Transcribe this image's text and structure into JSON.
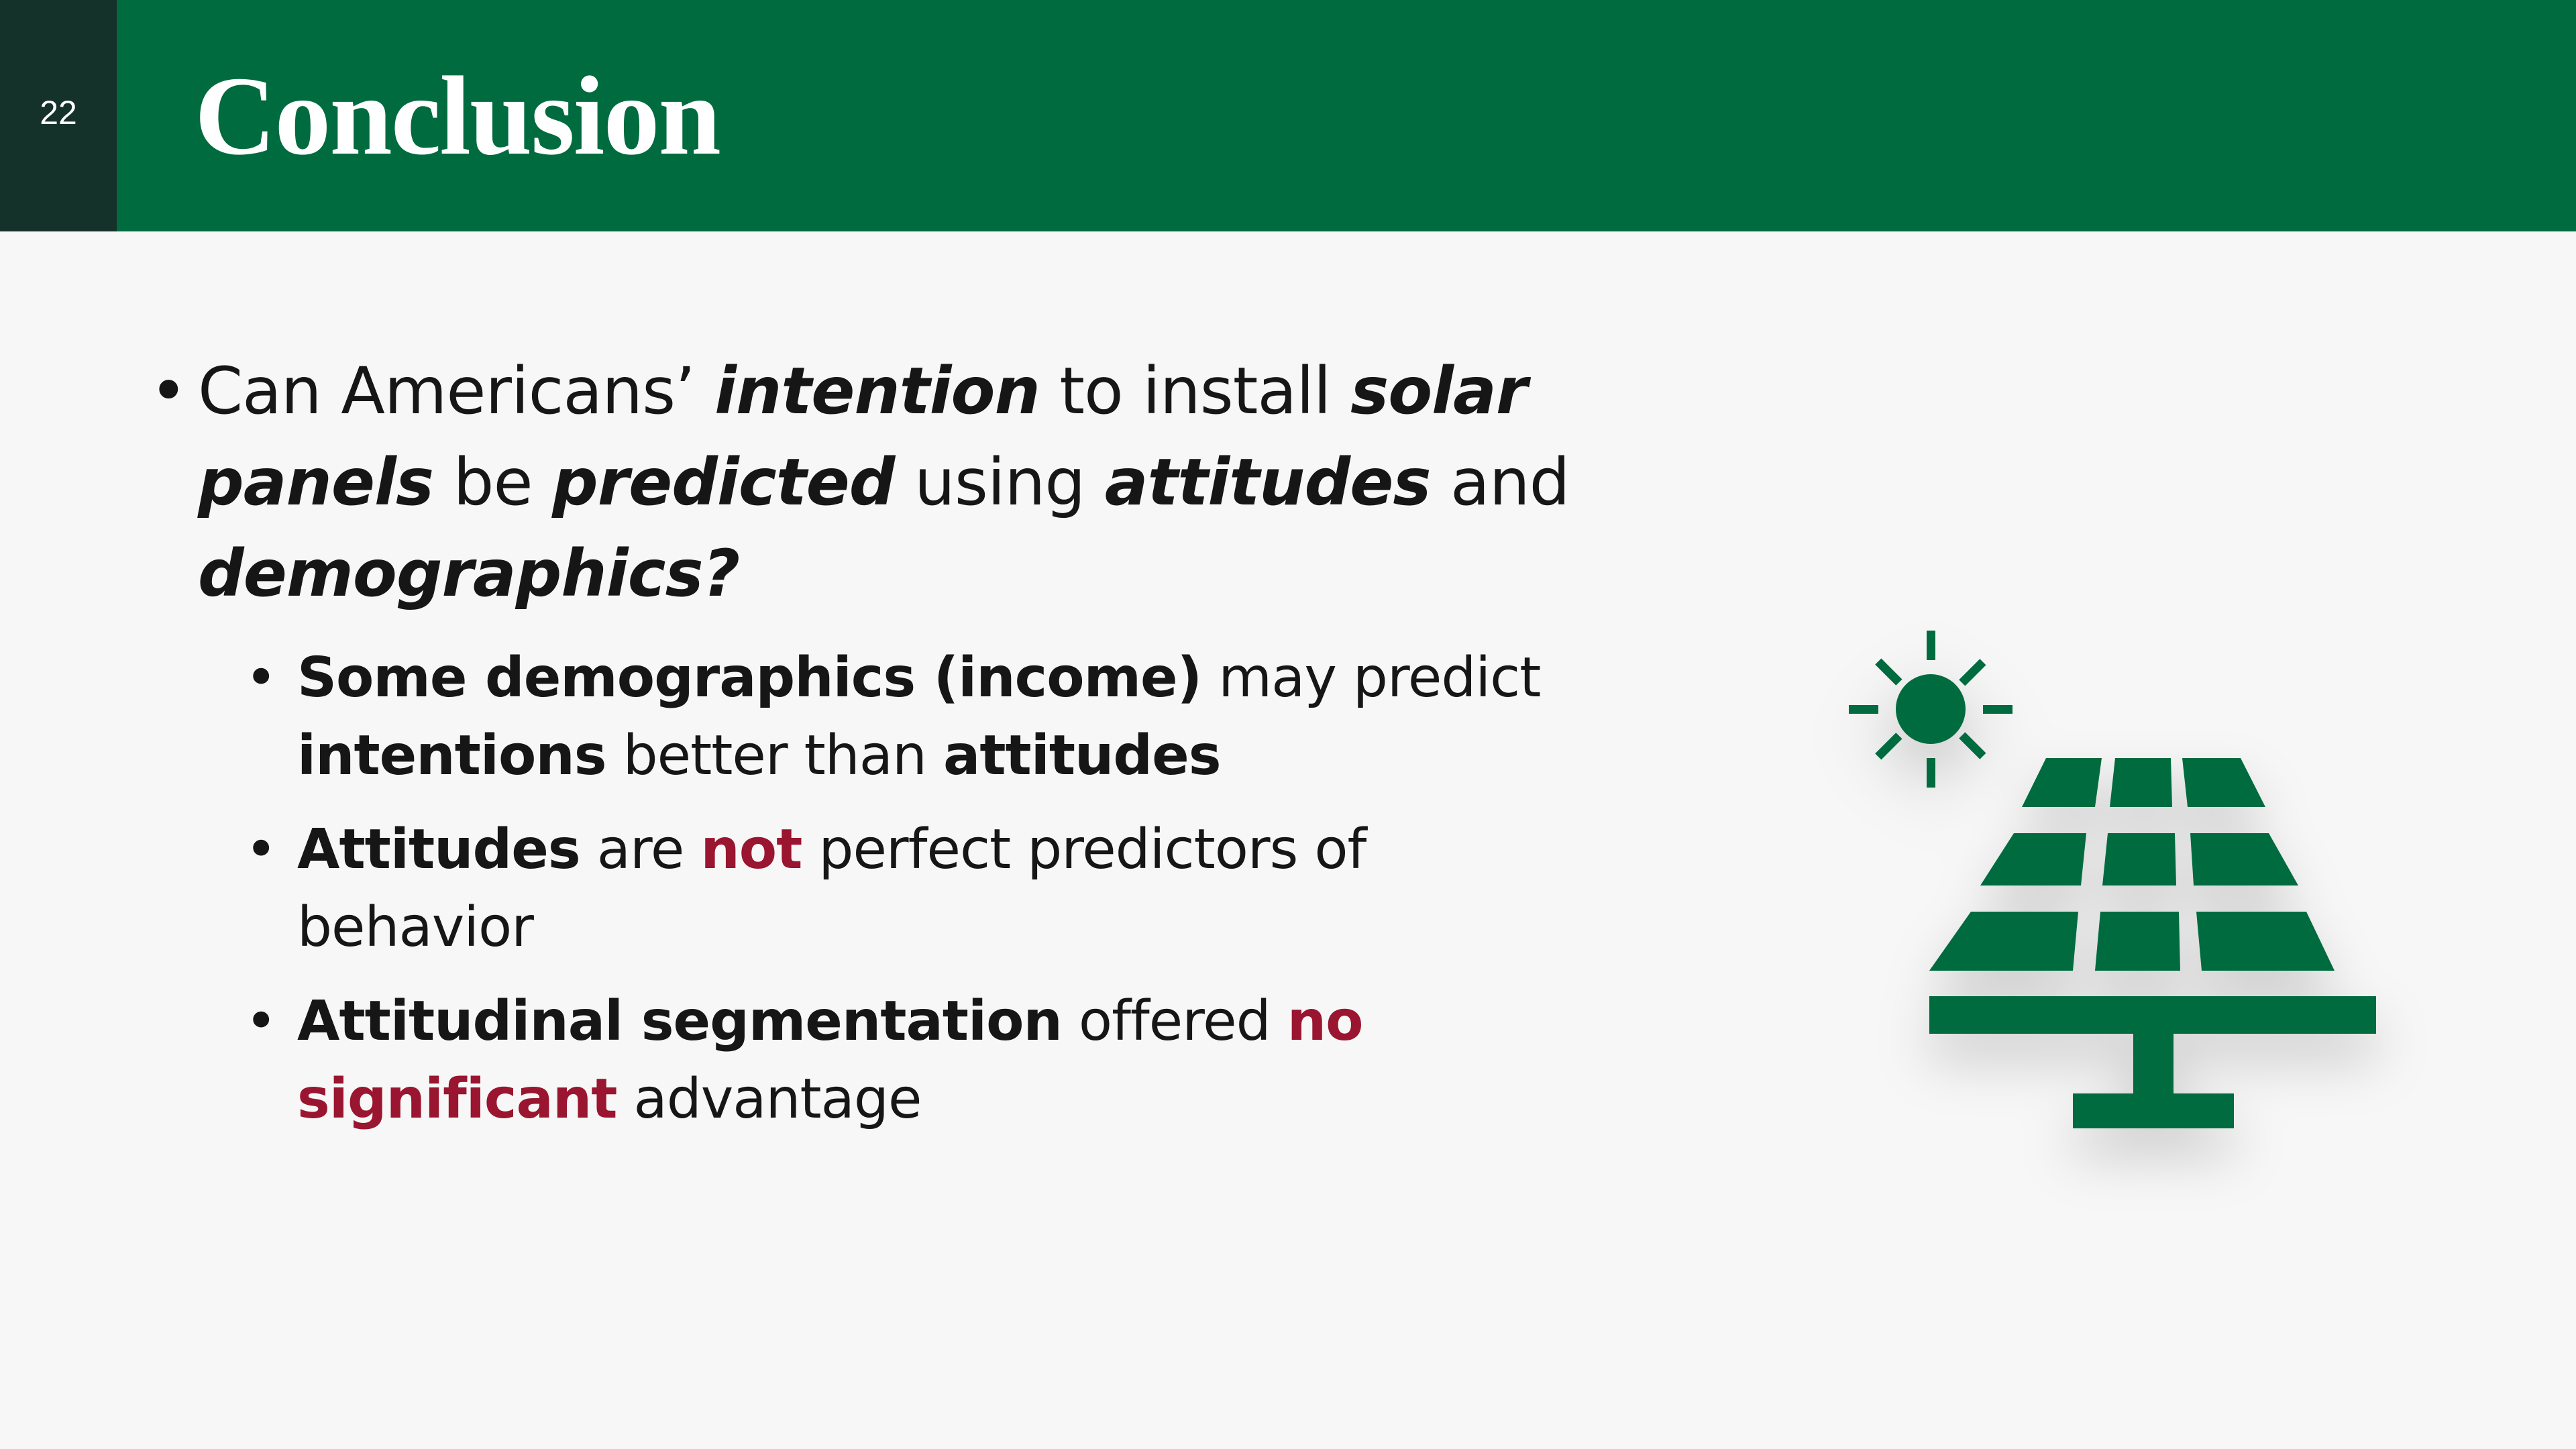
{
  "slide": {
    "number": "22",
    "title": "Conclusion"
  },
  "main_bullet": {
    "p1": "Can Americans’ ",
    "p2": "intention",
    "p3": " to install ",
    "p4": "solar panels",
    "p5": " be ",
    "p6": "predicted",
    "p7": " using ",
    "p8": "attitudes",
    "p9": " and ",
    "p10": "demographics?"
  },
  "sub_bullets": {
    "s1": {
      "a": "Some demographics (income)",
      "b": " may predict ",
      "c": "intentions",
      "d": " better than ",
      "e": "attitudes"
    },
    "s2": {
      "a": "Attitudes",
      "b": " are ",
      "c": "not",
      "d": " perfect predictors of behavior"
    },
    "s3": {
      "a": "Attitudinal segmentation",
      "b": " offered ",
      "c": "no significant",
      "d": " advantage"
    }
  },
  "bullet_char": "•",
  "icon": "solar-panel-icon",
  "colors": {
    "header_green": "#006b3f",
    "number_box": "#14312a",
    "emphasis_red": "#9a1530",
    "background": "#f7f7f7"
  }
}
